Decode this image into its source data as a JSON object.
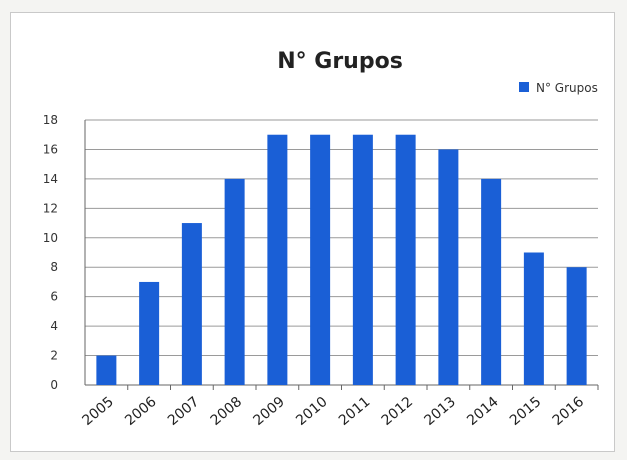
{
  "chart_data": {
    "type": "bar",
    "title": "N° Grupos",
    "xlabel": "",
    "ylabel": "",
    "categories": [
      "2005",
      "2006",
      "2007",
      "2008",
      "2009",
      "2010",
      "2011",
      "2012",
      "2013",
      "2014",
      "2015",
      "2016"
    ],
    "series": [
      {
        "name": "N° Grupos",
        "color": "#1a5fd6",
        "values": [
          2,
          7,
          11,
          14,
          17,
          17,
          17,
          17,
          16,
          14,
          9,
          8
        ]
      }
    ],
    "ylim": [
      0,
      18
    ],
    "yticks": [
      "0",
      "2",
      "4",
      "6",
      "8",
      "10",
      "12",
      "14",
      "16",
      "18"
    ],
    "grid": true,
    "legend_position": "top-right"
  }
}
